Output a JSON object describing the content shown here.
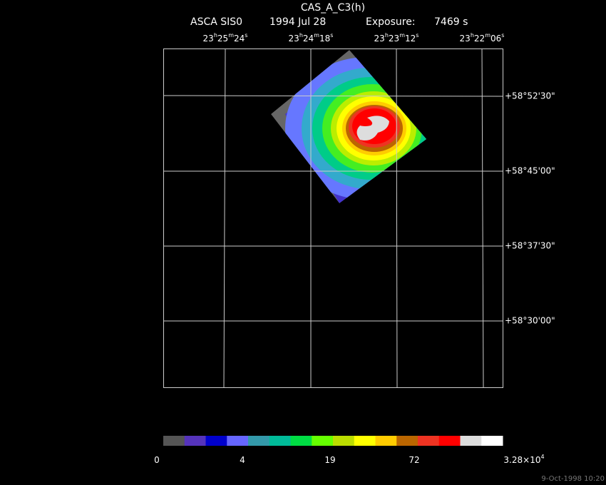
{
  "title": "CAS_A_C3(h)",
  "header": {
    "instrument": "ASCA SIS0",
    "date": "1994 Jul 28",
    "exposure_label": "Exposure:",
    "exposure": "7469 s"
  },
  "ra_labels": [
    [
      "23",
      "h",
      "25",
      "m",
      "24",
      "s"
    ],
    [
      "23",
      "h",
      "24",
      "m",
      "18",
      "s"
    ],
    [
      "23",
      "h",
      "23",
      "m",
      "12",
      "s"
    ],
    [
      "23",
      "h",
      "22",
      "m",
      "06",
      "s"
    ]
  ],
  "dec_labels": [
    "+58°52'30\"",
    "+58°45'00\"",
    "+58°37'30\"",
    "+58°30'00\""
  ],
  "colorbar_labels": [
    [
      "0"
    ],
    [
      "4"
    ],
    [
      "19"
    ],
    [
      "72"
    ],
    [
      "3.28×10",
      "4"
    ]
  ],
  "timestamp": "9-Oct-1998 10:20"
}
